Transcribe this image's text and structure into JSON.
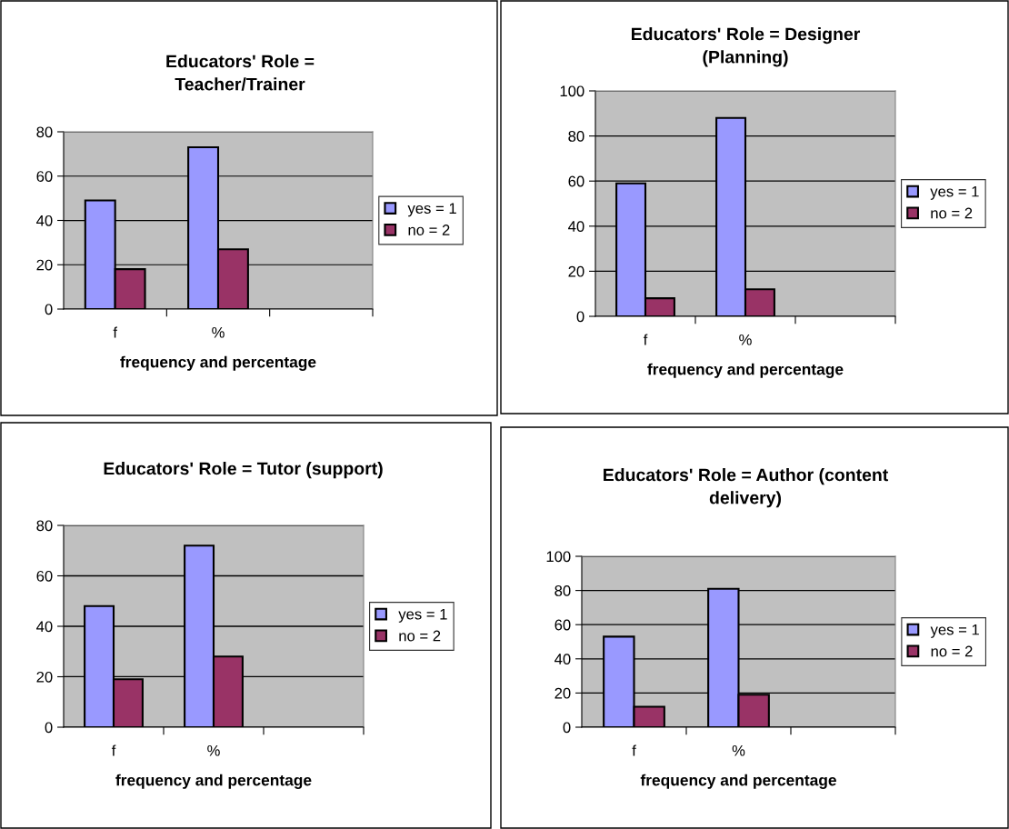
{
  "chart_data": [
    {
      "type": "bar",
      "title": "Educators' Role =\nTeacher/Trainer",
      "xlabel": "frequency and percentage",
      "categories": [
        "f",
        "%",
        null
      ],
      "ylim": [
        0,
        80
      ],
      "yticks": [
        0,
        20,
        40,
        60,
        80
      ],
      "grid": "y",
      "legend": "right",
      "series": [
        {
          "name": "yes = 1",
          "color": "#9999ff",
          "values": [
            49,
            73,
            null
          ]
        },
        {
          "name": "no = 2",
          "color": "#993366",
          "values": [
            18,
            27,
            null
          ]
        }
      ]
    },
    {
      "type": "bar",
      "title": "Educators' Role = Designer\n(Planning)",
      "xlabel": "frequency and percentage",
      "categories": [
        "f",
        "%",
        null
      ],
      "ylim": [
        0,
        100
      ],
      "yticks": [
        0,
        20,
        40,
        60,
        80,
        100
      ],
      "grid": "y",
      "legend": "right",
      "series": [
        {
          "name": "yes = 1",
          "color": "#9999ff",
          "values": [
            59,
            88,
            null
          ]
        },
        {
          "name": "no = 2",
          "color": "#993366",
          "values": [
            8,
            12,
            null
          ]
        }
      ]
    },
    {
      "type": "bar",
      "title": "Educators' Role = Tutor (support)",
      "xlabel": "frequency and percentage",
      "categories": [
        "f",
        "%",
        null
      ],
      "ylim": [
        0,
        80
      ],
      "yticks": [
        0,
        20,
        40,
        60,
        80
      ],
      "grid": "y",
      "legend": "right",
      "series": [
        {
          "name": "yes = 1",
          "color": "#9999ff",
          "values": [
            48,
            72,
            null
          ]
        },
        {
          "name": "no = 2",
          "color": "#993366",
          "values": [
            19,
            28,
            null
          ]
        }
      ]
    },
    {
      "type": "bar",
      "title": "Educators' Role = Author (content\ndelivery)",
      "xlabel": "frequency and percentage",
      "categories": [
        "f",
        "%",
        null
      ],
      "ylim": [
        0,
        100
      ],
      "yticks": [
        0,
        20,
        40,
        60,
        80,
        100
      ],
      "grid": "y",
      "legend": "right",
      "series": [
        {
          "name": "yes = 1",
          "color": "#9999ff",
          "values": [
            53,
            81,
            null
          ]
        },
        {
          "name": "no = 2",
          "color": "#993366",
          "values": [
            12,
            19,
            null
          ]
        }
      ]
    }
  ]
}
